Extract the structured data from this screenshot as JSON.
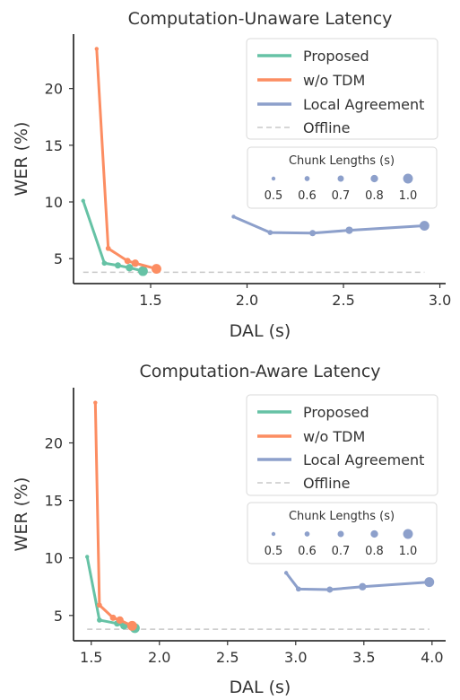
{
  "chart_data": [
    {
      "type": "line",
      "title": "Computation-Unaware Latency",
      "xlabel": "DAL (s)",
      "ylabel": "WER (%)",
      "xlim": [
        1.1,
        3.03
      ],
      "ylim": [
        2.8,
        24.8
      ],
      "xticks": [
        "1.5",
        "2.0",
        "2.5",
        "3.0"
      ],
      "xtick_values": [
        1.5,
        2.0,
        2.5,
        3.0
      ],
      "yticks": [
        "5",
        "10",
        "15",
        "20"
      ],
      "ytick_values": [
        5,
        10,
        15,
        20
      ],
      "grid": false,
      "legend_position": "top-right",
      "series": [
        {
          "name": "Proposed",
          "color": "#66c2a5",
          "x": [
            1.15,
            1.26,
            1.33,
            1.39,
            1.46
          ],
          "y": [
            10.1,
            4.6,
            4.4,
            4.2,
            3.9
          ],
          "sizes": [
            0.5,
            0.6,
            0.7,
            0.8,
            1.0
          ]
        },
        {
          "name": "w/o TDM",
          "color": "#fc8d62",
          "x": [
            1.22,
            1.28,
            1.38,
            1.42,
            1.53
          ],
          "y": [
            23.5,
            5.9,
            4.8,
            4.6,
            4.1
          ],
          "sizes": [
            0.5,
            0.6,
            0.7,
            0.8,
            1.0
          ]
        },
        {
          "name": "Local Agreement",
          "color": "#8da0cb",
          "x": [
            1.93,
            2.12,
            2.34,
            2.53,
            2.92
          ],
          "y": [
            8.7,
            7.3,
            7.25,
            7.5,
            7.9
          ],
          "sizes": [
            0.5,
            0.6,
            0.7,
            0.8,
            1.0
          ]
        }
      ],
      "offline": {
        "name": "Offline",
        "y": 3.8,
        "x_start": 1.15,
        "x_end": 2.92,
        "color": "#c8c8c8"
      },
      "chunk_legend": {
        "title": "Chunk Lengths (s)",
        "labels": [
          "0.5",
          "0.6",
          "0.7",
          "0.8",
          "1.0"
        ],
        "sizes": [
          0.5,
          0.6,
          0.7,
          0.8,
          1.0
        ]
      }
    },
    {
      "type": "line",
      "title": "Computation-Aware Latency",
      "xlabel": "DAL (s)",
      "ylabel": "WER (%)",
      "xlim": [
        1.37,
        4.1
      ],
      "ylim": [
        2.8,
        24.8
      ],
      "xticks": [
        "1.5",
        "2.0",
        "2.5",
        "3.0",
        "3.5",
        "4.0"
      ],
      "xtick_values": [
        1.5,
        2.0,
        2.5,
        3.0,
        3.5,
        4.0
      ],
      "yticks": [
        "5",
        "10",
        "15",
        "20"
      ],
      "ytick_values": [
        5,
        10,
        15,
        20
      ],
      "grid": false,
      "legend_position": "top-right",
      "series": [
        {
          "name": "Proposed",
          "color": "#66c2a5",
          "x": [
            1.47,
            1.56,
            1.69,
            1.74,
            1.82
          ],
          "y": [
            10.1,
            4.6,
            4.3,
            4.1,
            3.9
          ],
          "sizes": [
            0.5,
            0.6,
            0.7,
            0.8,
            1.0
          ]
        },
        {
          "name": "w/o TDM",
          "color": "#fc8d62",
          "x": [
            1.53,
            1.56,
            1.66,
            1.71,
            1.8
          ],
          "y": [
            23.5,
            5.9,
            4.8,
            4.6,
            4.1
          ],
          "sizes": [
            0.5,
            0.6,
            0.7,
            0.8,
            1.0
          ]
        },
        {
          "name": "Local Agreement",
          "color": "#8da0cb",
          "x": [
            2.93,
            3.02,
            3.25,
            3.49,
            3.98
          ],
          "y": [
            8.7,
            7.3,
            7.25,
            7.5,
            7.9
          ],
          "sizes": [
            0.5,
            0.6,
            0.7,
            0.8,
            1.0
          ]
        }
      ],
      "offline": {
        "name": "Offline",
        "y": 3.8,
        "x_start": 1.47,
        "x_end": 3.98,
        "color": "#c8c8c8"
      },
      "chunk_legend": {
        "title": "Chunk Lengths (s)",
        "labels": [
          "0.5",
          "0.6",
          "0.7",
          "0.8",
          "1.0"
        ],
        "sizes": [
          0.5,
          0.6,
          0.7,
          0.8,
          1.0
        ]
      }
    }
  ]
}
